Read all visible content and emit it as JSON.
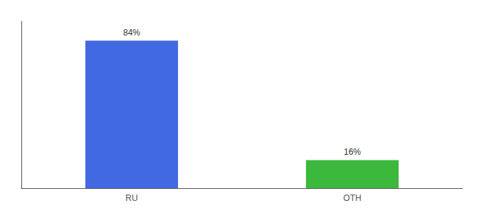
{
  "chart_data": {
    "type": "bar",
    "categories": [
      "RU",
      "OTH"
    ],
    "values": [
      84,
      16
    ],
    "value_labels": [
      "84%",
      "16%"
    ],
    "colors": [
      "#4169e1",
      "#3cb83c"
    ],
    "ylim": [
      0,
      95
    ],
    "grid": false,
    "data_labels": true,
    "tick_labels": "x"
  }
}
